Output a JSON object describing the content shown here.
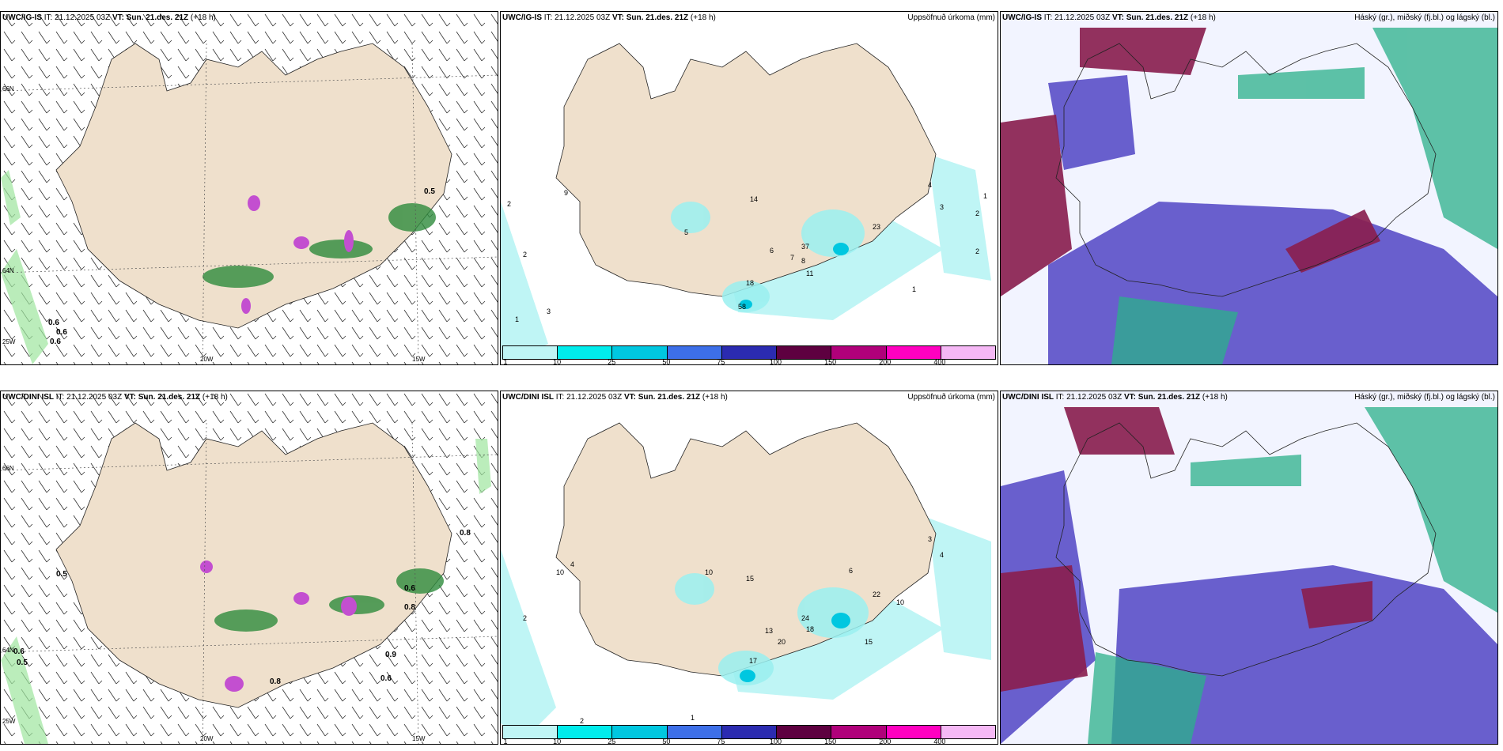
{
  "panels": {
    "p1": {
      "model": "UWC/IG-IS",
      "it_label": "IT:",
      "it_time": "21.12.2025 03Z",
      "vt_label": "VT:",
      "vt_time": "Sun. 21.des. 21Z",
      "lead": "(+18 h)",
      "title": ""
    },
    "p2": {
      "model": "UWC/IG-IS",
      "it_label": "IT:",
      "it_time": "21.12.2025 03Z",
      "vt_label": "VT:",
      "vt_time": "Sun. 21.des. 21Z",
      "lead": "(+18 h)",
      "title": "Uppsöfnuð úrkoma (mm)"
    },
    "p3": {
      "model": "UWC/IG-IS",
      "it_label": "IT:",
      "it_time": "21.12.2025 03Z",
      "vt_label": "VT:",
      "vt_time": "Sun. 21.des. 21Z",
      "lead": "(+18 h)",
      "title": "Háský (gr.), miðský (fj.bl.) og lágský (bl.)"
    },
    "p4": {
      "model": "UWC/DINI ISL",
      "it_label": "IT:",
      "it_time": "21.12.2025 03Z",
      "vt_label": "VT:",
      "vt_time": "Sun. 21.des. 21Z",
      "lead": "(+18 h)",
      "title": ""
    },
    "p5": {
      "model": "UWC/DINI ISL",
      "it_label": "IT:",
      "it_time": "21.12.2025 03Z",
      "vt_label": "VT:",
      "vt_time": "Sun. 21.des. 21Z",
      "lead": "(+18 h)",
      "title": "Uppsöfnuð úrkoma (mm)"
    },
    "p6": {
      "model": "UWC/DINI ISL",
      "it_label": "IT:",
      "it_time": "21.12.2025 03Z",
      "vt_label": "VT:",
      "vt_time": "Sun. 21.des. 21Z",
      "lead": "(+18 h)",
      "title": "Háský (gr.), miðský (fj.bl.) og lágský (bl.)"
    }
  },
  "axes": {
    "lat_66": "66N",
    "lat_64": "64N",
    "lon_20": "20W",
    "lon_15": "15W",
    "lon_25": "25W"
  },
  "legend": {
    "ticks": [
      "1",
      "10",
      "25",
      "50",
      "75",
      "100",
      "150",
      "200",
      "400"
    ],
    "colors": [
      "#bff5f5",
      "#00ecec",
      "#00c7e0",
      "#3d6fe8",
      "#2b2bb0",
      "#5e0040",
      "#b0007a",
      "#ff00c0",
      "#f5b8f5"
    ]
  },
  "labels": {
    "p1": [
      "0.5",
      "0.6",
      "0.6",
      "0.6"
    ],
    "p2": [
      "9",
      "14",
      "6",
      "5",
      "2",
      "3",
      "1",
      "2",
      "37",
      "58",
      "23",
      "18",
      "7",
      "8",
      "11",
      "4",
      "3",
      "2",
      "1",
      "2",
      "1"
    ],
    "p4": [
      "0.8",
      "0.5",
      "0.6",
      "0.5",
      "0.6",
      "0.8",
      "0.8",
      "0.9",
      "0.6"
    ],
    "p5": [
      "10",
      "15",
      "4",
      "10",
      "6",
      "24",
      "18",
      "17",
      "13",
      "20",
      "15",
      "22",
      "10",
      "3",
      "4",
      "2",
      "1",
      "2",
      "1"
    ]
  }
}
